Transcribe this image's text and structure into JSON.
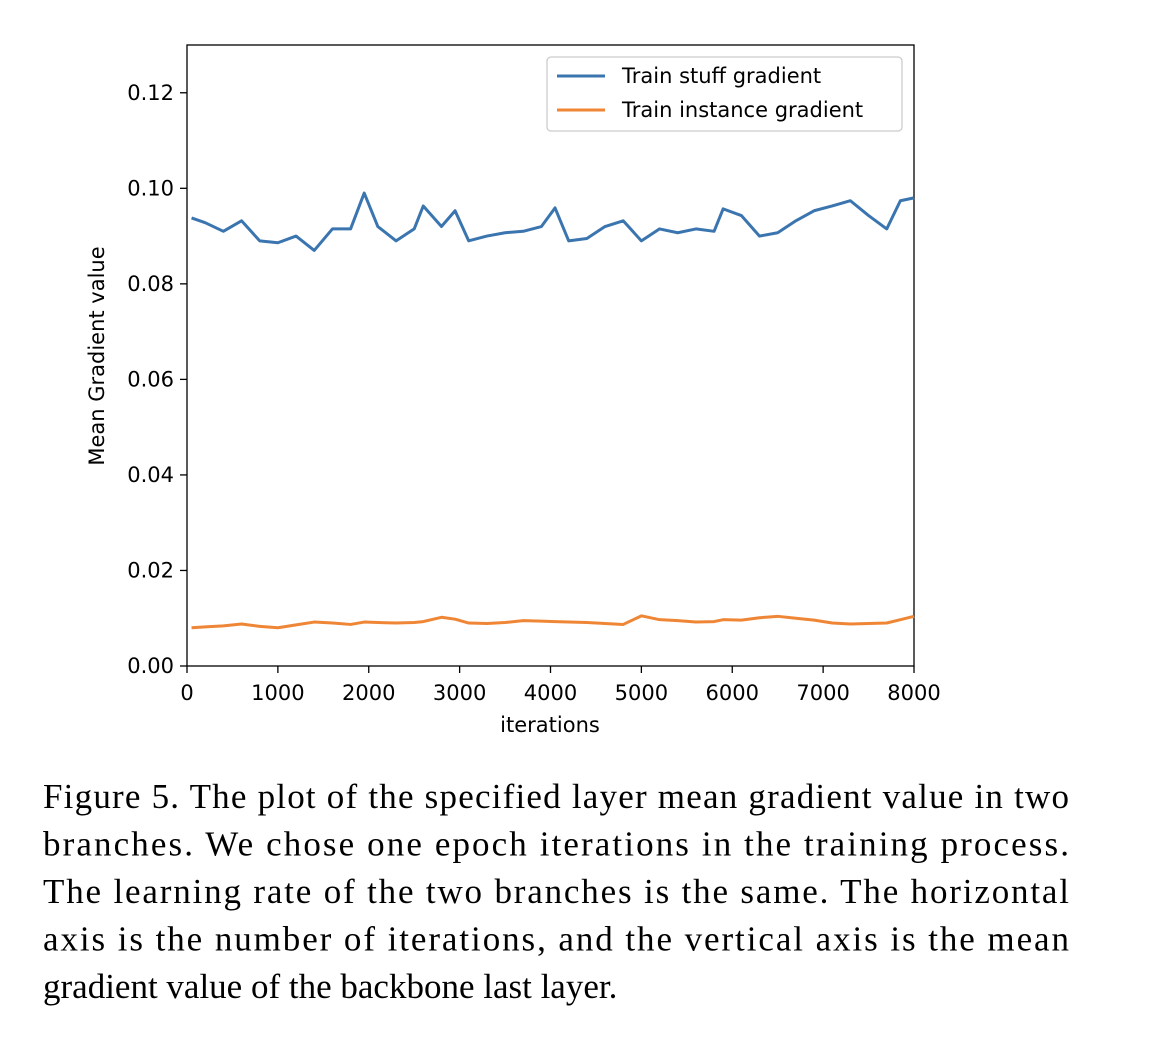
{
  "chart_data": {
    "type": "line",
    "xlabel": "iterations",
    "ylabel": "Mean Gradient value",
    "ylabel_color": "#3b75af",
    "x": [
      50,
      200,
      400,
      600,
      800,
      1000,
      1200,
      1400,
      1600,
      1800,
      1950,
      2100,
      2300,
      2500,
      2600,
      2800,
      2950,
      3100,
      3300,
      3500,
      3700,
      3900,
      4050,
      4200,
      4400,
      4600,
      4800,
      5000,
      5200,
      5400,
      5600,
      5800,
      5900,
      6100,
      6300,
      6500,
      6700,
      6900,
      7100,
      7300,
      7500,
      7700,
      7850,
      8000
    ],
    "series": [
      {
        "name": "Train stuff gradient",
        "color": "#3b75af",
        "values": [
          0.0938,
          0.0928,
          0.091,
          0.0932,
          0.089,
          0.0886,
          0.09,
          0.087,
          0.0915,
          0.0915,
          0.099,
          0.092,
          0.089,
          0.0915,
          0.0963,
          0.092,
          0.0953,
          0.089,
          0.09,
          0.0907,
          0.091,
          0.092,
          0.0959,
          0.089,
          0.0895,
          0.092,
          0.0932,
          0.089,
          0.0915,
          0.0907,
          0.0915,
          0.091,
          0.0957,
          0.0943,
          0.09,
          0.0907,
          0.0932,
          0.0953,
          0.0963,
          0.0974,
          0.0943,
          0.0915,
          0.0974,
          0.098
        ]
      },
      {
        "name": "Train instance gradient",
        "color": "#ef8636",
        "values": [
          0.008,
          0.0082,
          0.0084,
          0.0088,
          0.0083,
          0.008,
          0.0086,
          0.0092,
          0.009,
          0.0087,
          0.0092,
          0.0091,
          0.009,
          0.0091,
          0.0093,
          0.0102,
          0.0098,
          0.009,
          0.0089,
          0.0091,
          0.0095,
          0.0094,
          0.0093,
          0.0092,
          0.0091,
          0.0089,
          0.0087,
          0.0105,
          0.0097,
          0.0095,
          0.0092,
          0.0093,
          0.0097,
          0.0096,
          0.0101,
          0.0104,
          0.01,
          0.0096,
          0.009,
          0.0088,
          0.0089,
          0.009,
          0.0097,
          0.0104
        ]
      }
    ],
    "xlim": [
      0,
      8000
    ],
    "xticks": [
      0,
      1000,
      2000,
      3000,
      4000,
      5000,
      6000,
      7000,
      8000
    ],
    "ylim": [
      0,
      0.13
    ],
    "yticks": [
      {
        "value": 0,
        "label": "0.00"
      },
      {
        "value": 0.02,
        "label": "0.02"
      },
      {
        "value": 0.04,
        "label": "0.04"
      },
      {
        "value": 0.06,
        "label": "0.06"
      },
      {
        "value": 0.08,
        "label": "0.08"
      },
      {
        "value": 0.1,
        "label": "0.10"
      },
      {
        "value": 0.12,
        "label": "0.12"
      }
    ],
    "legend": "upper right"
  },
  "caption": [
    "Figure 5. The plot of the specified layer mean gradient value in two",
    "branches.  We chose one epoch iterations in the training process.",
    "The learning rate of the two branches is the same. The horizontal",
    "axis is the number of iterations, and the vertical axis is the mean",
    "gradient value of the backbone last layer."
  ]
}
